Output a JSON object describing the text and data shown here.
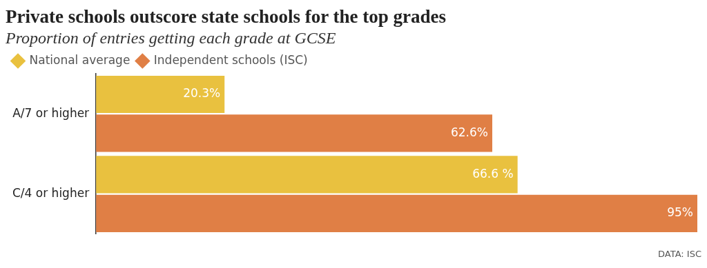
{
  "chart_data": {
    "type": "bar",
    "orientation": "horizontal",
    "title": "Private schools outscore state schools for the top grades",
    "subtitle": "Proportion of entries getting each grade at GCSE",
    "categories": [
      "A/7 or higher",
      "C/4 or higher"
    ],
    "series": [
      {
        "name": "National average",
        "color": "#e9c13f",
        "values": [
          20.3,
          66.6
        ],
        "value_labels": [
          "20.3%",
          "66.6 %"
        ]
      },
      {
        "name": "Independent schools (ISC)",
        "color": "#e07f45",
        "values": [
          62.6,
          95
        ],
        "value_labels": [
          "62.6%",
          "95%"
        ]
      }
    ],
    "xlim": [
      0,
      95
    ],
    "tick_labels": "y",
    "legend": "top left",
    "marker": "diamond",
    "annotations": [
      "DATA: ISC"
    ]
  }
}
